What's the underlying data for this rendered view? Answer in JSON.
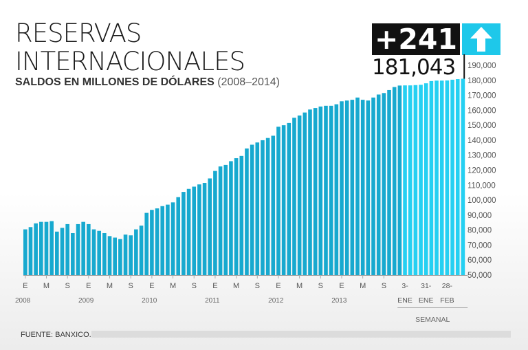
{
  "header": {
    "title_line1": "RESERVAS",
    "title_line2": "INTERNACIONALES",
    "subtitle_bold": "SALDOS EN MILLONES DE DÓLARES",
    "subtitle_light": "(2008–2014)"
  },
  "highlight": {
    "delta": "+241",
    "latest_value": "181,043",
    "arrow_icon": "arrow-up-icon"
  },
  "footer": {
    "source": "FUENTE: BANXICO."
  },
  "chart_data": {
    "type": "bar",
    "ylim": [
      50000,
      190000
    ],
    "yticks": [
      "50,000",
      "60,000",
      "70,000",
      "80,000",
      "90,000",
      "100,000",
      "110,000",
      "120,000",
      "130,000",
      "140,000",
      "150,000",
      "160,000",
      "170,000",
      "180,000",
      "190,000"
    ],
    "monthly_letters": [
      "E",
      "M",
      "S",
      "E",
      "M",
      "S",
      "E",
      "M",
      "S",
      "E",
      "M",
      "S",
      "E",
      "M",
      "S",
      "E",
      "M",
      "S"
    ],
    "years": [
      "2008",
      "2009",
      "2010",
      "2011",
      "2012",
      "2013"
    ],
    "weekly_ticks": [
      {
        "day": "3-",
        "month": "ENE"
      },
      {
        "day": "31-",
        "month": "ENE"
      },
      {
        "day": "28-",
        "month": "FEB"
      }
    ],
    "weekly_label": "SEMANAL",
    "series": [
      {
        "type": "monthly",
        "color": "#17a9cf",
        "values": [
          80500,
          82000,
          84500,
          85500,
          85500,
          86000,
          79000,
          81500,
          84000,
          78000,
          84000,
          85500,
          84000,
          80500,
          79500,
          78000,
          76000,
          75000,
          74000,
          77000,
          76500,
          80500,
          83000,
          91500,
          93500,
          94500,
          96000,
          97000,
          98500,
          102000,
          105500,
          107500,
          109000,
          110500,
          111500,
          114500,
          119500,
          122500,
          123500,
          126000,
          128000,
          129500,
          134500,
          137000,
          138500,
          140000,
          141500,
          143000,
          149000,
          150000,
          151500,
          155000,
          156500,
          158500,
          160500,
          161500,
          162500,
          163000,
          163000,
          164000,
          166000,
          166500,
          167000,
          168500,
          167000,
          166500,
          168500,
          170500,
          171500,
          173500,
          175500,
          176500
        ]
      },
      {
        "type": "weekly",
        "color": "#25d0f2",
        "values": [
          176600,
          176600,
          176800,
          177000,
          178000,
          179500,
          179800,
          179800,
          179900,
          180400,
          180800,
          181043
        ]
      }
    ]
  }
}
